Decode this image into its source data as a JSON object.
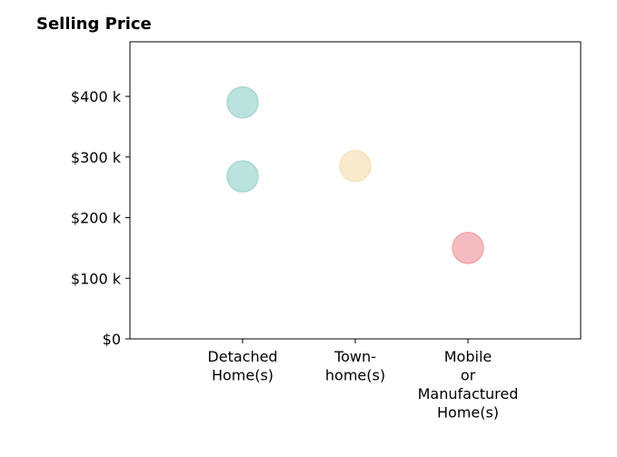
{
  "chart_data": {
    "type": "scatter",
    "title": "Selling Price",
    "xlabel": "",
    "ylabel": "",
    "categories": [
      [
        "Detached",
        "Home(s)"
      ],
      [
        "Town-",
        "home(s)"
      ],
      [
        "Mobile",
        "or",
        "Manufactured",
        "Home(s)"
      ]
    ],
    "points": [
      {
        "category": 0,
        "value": 390000,
        "color": "#a6d8d2"
      },
      {
        "category": 0,
        "value": 268000,
        "color": "#a6d8d2"
      },
      {
        "category": 1,
        "value": 285000,
        "color": "#f7e3bd"
      },
      {
        "category": 2,
        "value": 150000,
        "color": "#f2a5ab"
      }
    ],
    "y_ticks": [
      {
        "value": 0,
        "label": "$0"
      },
      {
        "value": 100000,
        "label": "$100 k"
      },
      {
        "value": 200000,
        "label": "$200 k"
      },
      {
        "value": 300000,
        "label": "$300 k"
      },
      {
        "value": 400000,
        "label": "$400 k"
      }
    ],
    "ylim": [
      0,
      490000
    ],
    "xlim": [
      -1,
      3
    ],
    "grid": false,
    "legend": "none"
  }
}
